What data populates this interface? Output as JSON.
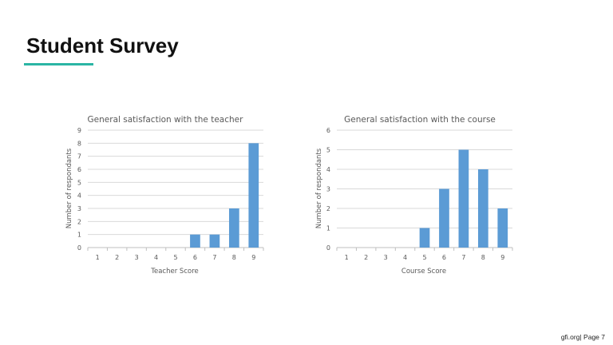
{
  "slide": {
    "title": "Student Survey",
    "accent_color": "#2bb5a4"
  },
  "footer": {
    "site": "gfi.org",
    "separator": "|",
    "page_label": "Page 7"
  },
  "chart_data": [
    {
      "type": "bar",
      "title": "General satisfaction with the teacher",
      "xlabel": "Teacher Score",
      "ylabel": "Number of respondants",
      "categories": [
        "1",
        "2",
        "3",
        "4",
        "5",
        "6",
        "7",
        "8",
        "9"
      ],
      "values": [
        0,
        0,
        0,
        0,
        0,
        1,
        1,
        3,
        8
      ],
      "ylim": [
        0,
        9
      ],
      "yticks": [
        "0",
        "1",
        "2",
        "3",
        "4",
        "5",
        "6",
        "7",
        "8",
        "9"
      ],
      "grid": true,
      "bar_color": "#5b9bd5"
    },
    {
      "type": "bar",
      "title": "General satisfaction with the course",
      "xlabel": "Course Score",
      "ylabel": "Number of respondants",
      "categories": [
        "1",
        "2",
        "3",
        "4",
        "5",
        "6",
        "7",
        "8",
        "9"
      ],
      "values": [
        0,
        0,
        0,
        0,
        1,
        3,
        5,
        4,
        2
      ],
      "ylim": [
        0,
        6
      ],
      "yticks": [
        "0",
        "1",
        "2",
        "3",
        "4",
        "5",
        "6"
      ],
      "grid": true,
      "bar_color": "#5b9bd5"
    }
  ]
}
